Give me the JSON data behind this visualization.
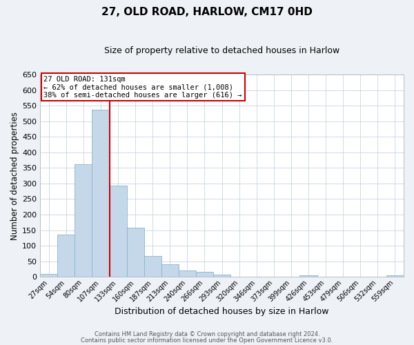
{
  "title": "27, OLD ROAD, HARLOW, CM17 0HD",
  "subtitle": "Size of property relative to detached houses in Harlow",
  "xlabel": "Distribution of detached houses by size in Harlow",
  "ylabel": "Number of detached properties",
  "bar_labels": [
    "27sqm",
    "54sqm",
    "80sqm",
    "107sqm",
    "133sqm",
    "160sqm",
    "187sqm",
    "213sqm",
    "240sqm",
    "266sqm",
    "293sqm",
    "320sqm",
    "346sqm",
    "373sqm",
    "399sqm",
    "426sqm",
    "453sqm",
    "479sqm",
    "506sqm",
    "532sqm",
    "559sqm"
  ],
  "bar_heights": [
    10,
    136,
    362,
    538,
    293,
    158,
    67,
    40,
    21,
    15,
    8,
    0,
    0,
    0,
    0,
    5,
    0,
    0,
    0,
    0,
    5
  ],
  "bar_color": "#c5d8ea",
  "bar_edgecolor": "#8ab4cc",
  "vline_color": "#cc0000",
  "vline_x_index": 3,
  "ylim": [
    0,
    650
  ],
  "yticks": [
    0,
    50,
    100,
    150,
    200,
    250,
    300,
    350,
    400,
    450,
    500,
    550,
    600,
    650
  ],
  "annotation_title": "27 OLD ROAD: 131sqm",
  "annotation_line1": "← 62% of detached houses are smaller (1,008)",
  "annotation_line2": "38% of semi-detached houses are larger (616) →",
  "annotation_box_edgecolor": "#cc0000",
  "footer_line1": "Contains HM Land Registry data © Crown copyright and database right 2024.",
  "footer_line2": "Contains public sector information licensed under the Open Government Licence v3.0.",
  "bg_color": "#eef2f7",
  "plot_bg_color": "#ffffff",
  "grid_color": "#c8d4e0"
}
